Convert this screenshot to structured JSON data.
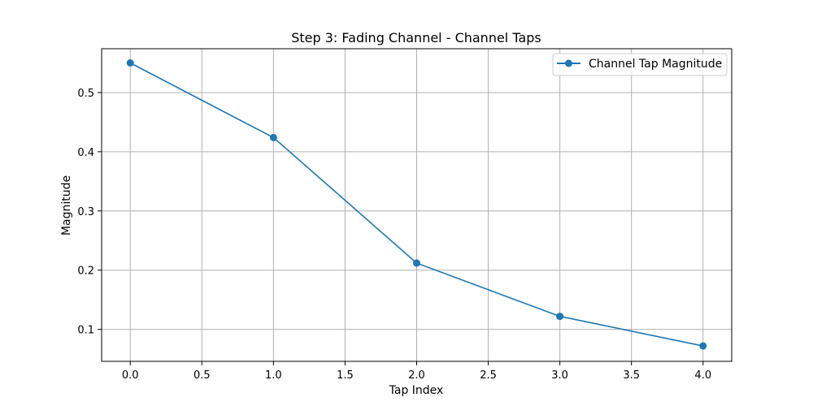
{
  "chart_data": {
    "type": "line",
    "title": "Step 3: Fading Channel - Channel Taps",
    "xlabel": "Tap Index",
    "ylabel": "Magnitude",
    "xlim": [
      -0.2,
      4.2
    ],
    "ylim": [
      0.046,
      0.574
    ],
    "x_ticks": [
      0.0,
      0.5,
      1.0,
      1.5,
      2.0,
      2.5,
      3.0,
      3.5,
      4.0
    ],
    "x_tick_labels": [
      "0.0",
      "0.5",
      "1.0",
      "1.5",
      "2.0",
      "2.5",
      "3.0",
      "3.5",
      "4.0"
    ],
    "y_ticks": [
      0.1,
      0.2,
      0.3,
      0.4,
      0.5
    ],
    "y_tick_labels": [
      "0.1",
      "0.2",
      "0.3",
      "0.4",
      "0.5"
    ],
    "grid": true,
    "legend_position": "top-right",
    "series": [
      {
        "name": "Channel Tap Magnitude",
        "color": "#1f77b4",
        "marker": "circle",
        "x": [
          0,
          1,
          2,
          3,
          4
        ],
        "y": [
          0.55,
          0.424,
          0.212,
          0.122,
          0.072
        ]
      }
    ]
  }
}
